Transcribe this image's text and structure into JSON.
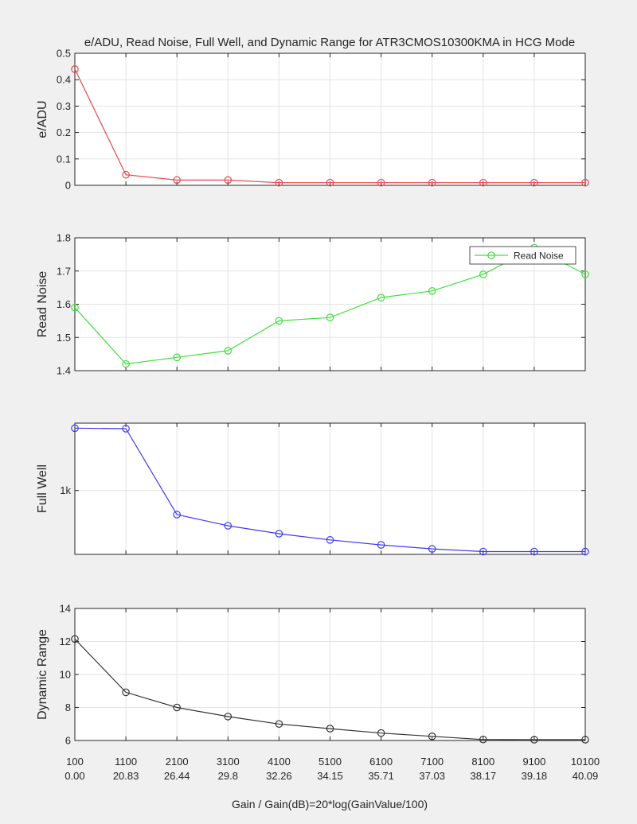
{
  "chart_data": {
    "type": "line",
    "title": "e/ADU, Read Noise, Full Well, and Dynamic Range for ATR3CMOS10300KMA in HCG Mode",
    "xlabel": "Gain / Gain(dB)=20*log(GainValue/100)",
    "x": [
      100,
      1100,
      2100,
      3100,
      4100,
      5100,
      6100,
      7100,
      8100,
      9100,
      10100
    ],
    "x_tick_labels": [
      "100",
      "1100",
      "2100",
      "3100",
      "4100",
      "5100",
      "6100",
      "7100",
      "8100",
      "9100",
      "10100"
    ],
    "x_tick_labels_db": [
      "0.00",
      "20.83",
      "26.44",
      "29.8",
      "32.26",
      "34.15",
      "35.71",
      "37.03",
      "38.17",
      "39.18",
      "40.09"
    ],
    "grid": true,
    "panels": [
      {
        "ylabel": "e/ADU",
        "ylim": [
          0,
          0.5
        ],
        "yticks": [
          "0",
          "0.1",
          "0.2",
          "0.3",
          "0.4",
          "0.5"
        ],
        "color": "#e8474a",
        "values": [
          0.44,
          0.04,
          0.02,
          0.02,
          0.01,
          0.01,
          0.01,
          0.01,
          0.01,
          0.01,
          0.01
        ]
      },
      {
        "ylabel": "Read Noise",
        "ylim": [
          1.4,
          1.8
        ],
        "yticks": [
          "1.4",
          "1.5",
          "1.6",
          "1.7",
          "1.8"
        ],
        "color": "#3fe03f",
        "legend": "Read Noise",
        "legend_position": "top-right",
        "values": [
          1.59,
          1.42,
          1.44,
          1.46,
          1.55,
          1.56,
          1.62,
          1.64,
          1.69,
          1.77,
          1.69
        ]
      },
      {
        "ylabel": "Full Well",
        "scale": "log",
        "ylim": [
          660,
          1550
        ],
        "yticks": [
          "1k"
        ],
        "ytick_values": [
          1000
        ],
        "color": "#3c3cf0",
        "values": [
          1500,
          1495,
          855,
          795,
          755,
          725,
          702,
          684,
          672,
          672,
          672
        ]
      },
      {
        "ylabel": "Dynamic Range",
        "ylim": [
          6,
          14
        ],
        "yticks": [
          "6",
          "8",
          "10",
          "12",
          "14"
        ],
        "color": "#333333",
        "values": [
          12.15,
          8.92,
          8.0,
          7.45,
          7.0,
          6.72,
          6.45,
          6.25,
          6.06,
          6.05,
          6.05
        ]
      }
    ]
  }
}
